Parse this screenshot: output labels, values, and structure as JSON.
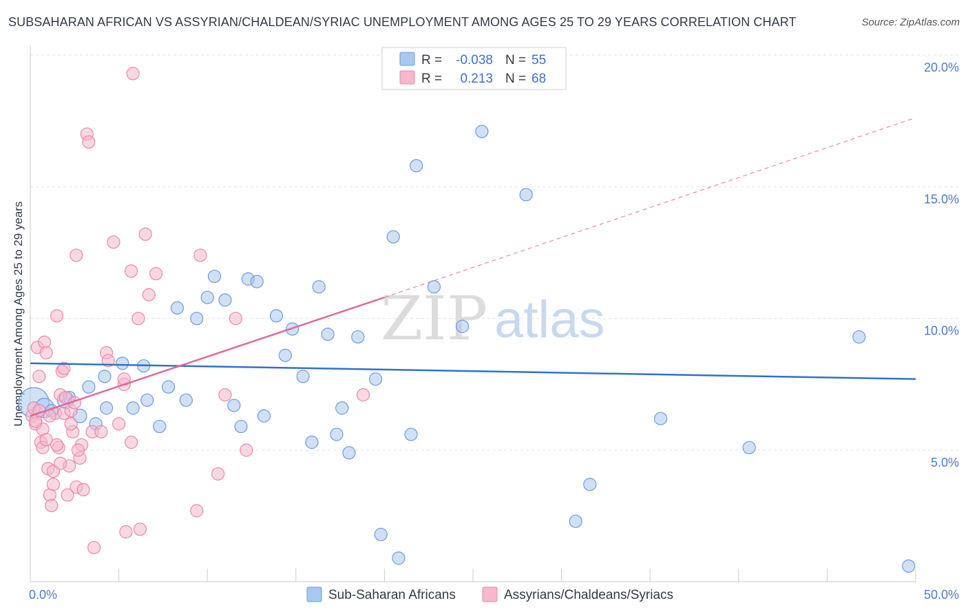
{
  "title": "SUBSAHARAN AFRICAN VS ASSYRIAN/CHALDEAN/SYRIAC UNEMPLOYMENT AMONG AGES 25 TO 29 YEARS CORRELATION CHART",
  "source": "Source: ZipAtlas.com",
  "watermark": {
    "zip": "ZIP",
    "atlas": "atlas"
  },
  "legend": {
    "r_label": "R =",
    "n_label": "N =",
    "rows": [
      {
        "r": "-0.038",
        "n": "55"
      },
      {
        "r": "0.213",
        "n": "68"
      }
    ]
  },
  "colors": {
    "blue_fill": "#a9c8ee",
    "blue_stroke": "#6b9be0",
    "blue_line": "#2e72cc",
    "pink_fill": "#f5b8cc",
    "pink_stroke": "#e888a8",
    "pink_line": "#e0689a",
    "grid": "#e2e2e2",
    "tick_label": "#4a7cc9"
  },
  "chart_data": {
    "type": "scatter",
    "title": "SUBSAHARAN AFRICAN VS ASSYRIAN/CHALDEAN/SYRIAC UNEMPLOYMENT AMONG AGES 25 TO 29 YEARS CORRELATION CHART",
    "xlabel": "",
    "ylabel": "Unemployment Among Ages 25 to 29 years",
    "xlim": [
      0,
      50
    ],
    "ylim": [
      0,
      20.5
    ],
    "x_tick_labels": [
      "0.0%",
      "50.0%"
    ],
    "y_ticks": [
      5,
      10,
      15,
      20
    ],
    "y_tick_labels": [
      "5.0%",
      "10.0%",
      "15.0%",
      "20.0%"
    ],
    "grid": true,
    "legend_position": "top-center",
    "series": [
      {
        "name": "Sub-Saharan Africans",
        "r": -0.038,
        "n": 55,
        "trend": {
          "x0": 0,
          "y0": 8.3,
          "x1": 50,
          "y1": 7.7,
          "dashed_to": null
        },
        "points": [
          [
            0.2,
            6.8,
            22
          ],
          [
            0.8,
            6.6,
            14
          ],
          [
            2.0,
            6.9,
            12
          ],
          [
            2.8,
            6.3,
            10
          ],
          [
            3.3,
            7.4,
            9
          ],
          [
            4.2,
            7.8,
            9
          ],
          [
            5.2,
            8.3,
            9
          ],
          [
            6.4,
            8.2,
            9
          ],
          [
            4.3,
            6.6,
            9
          ],
          [
            5.8,
            6.6,
            9
          ],
          [
            6.6,
            6.9,
            9
          ],
          [
            7.3,
            5.9,
            9
          ],
          [
            7.8,
            7.4,
            9
          ],
          [
            8.3,
            10.4,
            9
          ],
          [
            8.8,
            6.9,
            9
          ],
          [
            9.4,
            10.0,
            9
          ],
          [
            10.0,
            10.8,
            9
          ],
          [
            10.4,
            11.6,
            9
          ],
          [
            11.0,
            10.7,
            9
          ],
          [
            11.5,
            6.7,
            9
          ],
          [
            11.9,
            5.9,
            9
          ],
          [
            12.3,
            11.5,
            9
          ],
          [
            12.8,
            11.4,
            9
          ],
          [
            13.2,
            6.3,
            9
          ],
          [
            13.9,
            10.1,
            9
          ],
          [
            14.4,
            8.6,
            9
          ],
          [
            14.8,
            9.6,
            9
          ],
          [
            15.4,
            7.8,
            9
          ],
          [
            15.9,
            5.3,
            9
          ],
          [
            16.3,
            11.2,
            9
          ],
          [
            16.8,
            9.4,
            9
          ],
          [
            17.3,
            5.6,
            9
          ],
          [
            17.6,
            6.6,
            9
          ],
          [
            18.0,
            4.9,
            9
          ],
          [
            18.5,
            9.3,
            9
          ],
          [
            19.5,
            7.7,
            9
          ],
          [
            19.8,
            1.8,
            9
          ],
          [
            20.5,
            13.1,
            9
          ],
          [
            20.8,
            0.9,
            9
          ],
          [
            21.5,
            5.6,
            9
          ],
          [
            21.8,
            15.8,
            9
          ],
          [
            22.8,
            11.2,
            9
          ],
          [
            24.0,
            19.4,
            9
          ],
          [
            24.4,
            9.7,
            9
          ],
          [
            25.5,
            17.1,
            9
          ],
          [
            28.0,
            14.7,
            9
          ],
          [
            30.8,
            2.3,
            9
          ],
          [
            31.6,
            3.7,
            9
          ],
          [
            35.6,
            6.2,
            9
          ],
          [
            40.6,
            5.1,
            9
          ],
          [
            46.8,
            9.3,
            9
          ],
          [
            49.6,
            0.6,
            9
          ],
          [
            1.2,
            6.5,
            9
          ],
          [
            2.2,
            7.0,
            9
          ],
          [
            3.7,
            6.0,
            9
          ]
        ]
      },
      {
        "name": "Assyrians/Chaldeans/Syriacs",
        "r": 0.213,
        "n": 68,
        "trend": {
          "x0": 0,
          "y0": 6.3,
          "x1": 20,
          "y1": 10.8,
          "dashed_to": {
            "x": 49.9,
            "y": 17.6
          }
        },
        "points": [
          [
            0.1,
            6.3,
            9
          ],
          [
            0.2,
            6.6,
            9
          ],
          [
            0.3,
            6.0,
            9
          ],
          [
            0.4,
            8.9,
            9
          ],
          [
            0.5,
            7.8,
            9
          ],
          [
            0.6,
            5.3,
            9
          ],
          [
            0.7,
            5.8,
            9
          ],
          [
            0.8,
            9.1,
            9
          ],
          [
            0.9,
            8.7,
            9
          ],
          [
            1.0,
            4.3,
            9
          ],
          [
            1.1,
            3.3,
            9
          ],
          [
            1.2,
            2.9,
            9
          ],
          [
            1.3,
            4.2,
            9
          ],
          [
            1.4,
            6.4,
            9
          ],
          [
            1.5,
            10.1,
            9
          ],
          [
            1.6,
            5.1,
            9
          ],
          [
            1.7,
            7.1,
            9
          ],
          [
            1.8,
            8.0,
            9
          ],
          [
            1.9,
            6.4,
            9
          ],
          [
            2.0,
            7.0,
            9
          ],
          [
            2.2,
            4.4,
            9
          ],
          [
            2.3,
            6.5,
            9
          ],
          [
            2.4,
            5.7,
            9
          ],
          [
            2.6,
            3.6,
            9
          ],
          [
            2.6,
            12.4,
            9
          ],
          [
            2.8,
            4.7,
            9
          ],
          [
            2.9,
            5.2,
            9
          ],
          [
            3.0,
            3.5,
            9
          ],
          [
            3.2,
            17.0,
            9
          ],
          [
            3.3,
            16.7,
            9
          ],
          [
            3.5,
            5.7,
            9
          ],
          [
            3.6,
            1.3,
            9
          ],
          [
            4.0,
            5.7,
            9
          ],
          [
            4.3,
            8.7,
            9
          ],
          [
            4.4,
            8.4,
            9
          ],
          [
            4.7,
            12.9,
            9
          ],
          [
            5.0,
            6.0,
            9
          ],
          [
            5.3,
            7.5,
            9
          ],
          [
            5.3,
            7.7,
            9
          ],
          [
            5.4,
            1.9,
            9
          ],
          [
            5.7,
            11.8,
            9
          ],
          [
            5.7,
            5.3,
            9
          ],
          [
            5.8,
            19.3,
            9
          ],
          [
            6.1,
            10.0,
            9
          ],
          [
            6.2,
            2.0,
            9
          ],
          [
            6.5,
            13.2,
            9
          ],
          [
            6.7,
            10.9,
            9
          ],
          [
            7.1,
            11.7,
            9
          ],
          [
            9.4,
            2.7,
            9
          ],
          [
            9.6,
            12.4,
            9
          ],
          [
            10.6,
            4.1,
            9
          ],
          [
            11.0,
            7.1,
            9
          ],
          [
            11.6,
            10.0,
            9
          ],
          [
            12.2,
            5.0,
            9
          ],
          [
            18.8,
            7.1,
            9
          ],
          [
            0.3,
            6.1,
            9
          ],
          [
            0.5,
            6.5,
            9
          ],
          [
            0.7,
            5.1,
            9
          ],
          [
            0.9,
            5.4,
            9
          ],
          [
            1.1,
            6.3,
            9
          ],
          [
            1.3,
            3.7,
            9
          ],
          [
            1.5,
            5.2,
            9
          ],
          [
            1.7,
            4.5,
            9
          ],
          [
            1.9,
            8.1,
            9
          ],
          [
            2.1,
            3.3,
            9
          ],
          [
            2.3,
            6.0,
            9
          ],
          [
            2.5,
            6.8,
            9
          ],
          [
            2.7,
            5.0,
            9
          ]
        ]
      }
    ]
  },
  "bottom_legend": [
    "Sub-Saharan Africans",
    "Assyrians/Chaldeans/Syriacs"
  ]
}
